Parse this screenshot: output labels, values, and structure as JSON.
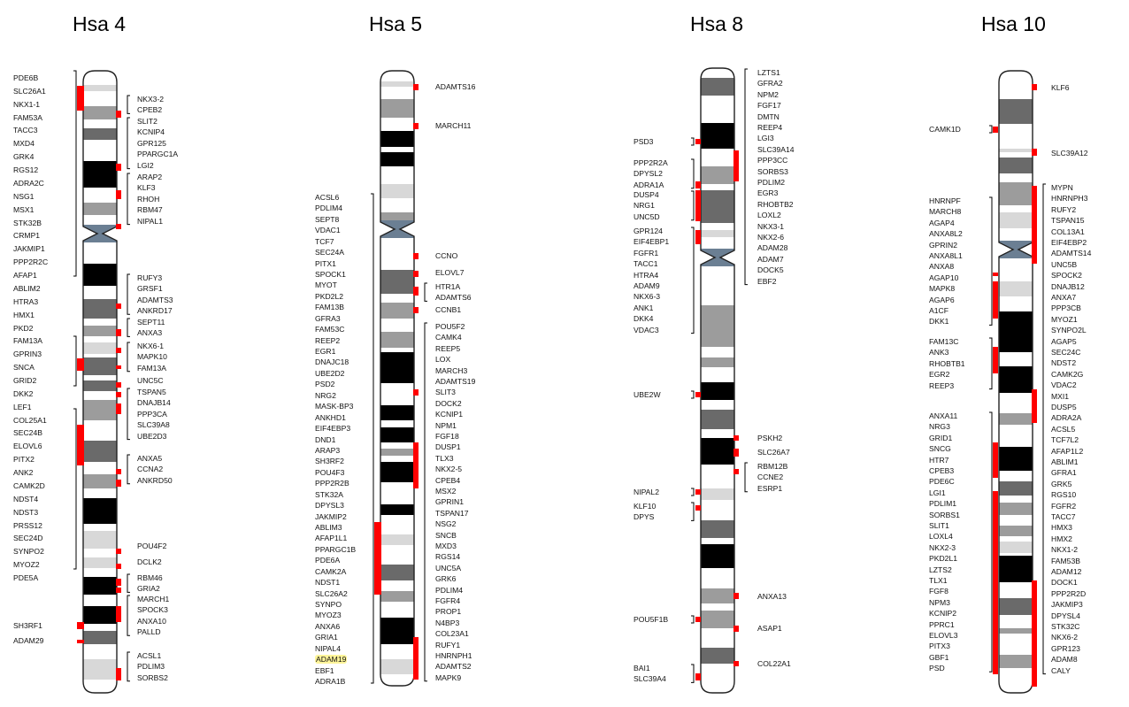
{
  "colors": {
    "black": "#000000",
    "dark": "#6a6a6a",
    "mid": "#9c9c9c",
    "light": "#d8d8d8",
    "white": "#ffffff",
    "centromere": "#6b7f93",
    "marker": "#ff0000",
    "highlight": "#fff59a"
  },
  "chromosomes": [
    {
      "id": "hsa4",
      "title": "Hsa 4",
      "left_genes": [
        "PDE6B",
        "SLC26A1",
        "NKX1-1",
        "FAM53A",
        "TACC3",
        "MXD4",
        "GRK4",
        "RGS12",
        "ADRA2C",
        "NSG1",
        "MSX1",
        "STK32B",
        "CRMP1",
        "JAKMIP1",
        "PPP2R2C",
        "AFAP1",
        "ABLIM2",
        "HTRA3",
        "HMX1",
        "PKD2",
        "FAM13A",
        "GPRIN3",
        "SNCA",
        "GRID2",
        "DKK2",
        "LEF1",
        "COL25A1",
        "SEC24B",
        "ELOVL6",
        "PITX2",
        "ANK2",
        "CAMK2D",
        "NDST4",
        "NDST3",
        "PRSS12",
        "SEC24D",
        "SYNPO2",
        "MYOZ2",
        "PDE5A",
        "SH3RF1",
        "ADAM29"
      ],
      "right_genes": [
        "NKX3-2",
        "CPEB2",
        "SLIT2",
        "KCNIP4",
        "GPR125",
        "PPARGC1A",
        "LGI2",
        "ARAP2",
        "KLF3",
        "RHOH",
        "RBM47",
        "NIPAL1",
        "RUFY3",
        "GRSF1",
        "ADAMTS3",
        "ANKRD17",
        "SEPT11",
        "ANXA3",
        "NKX6-1",
        "MAPK10",
        "FAM13A",
        "UNC5C",
        "TSPAN5",
        "DNAJB14",
        "PPP3CA",
        "SLC39A8",
        "UBE2D3",
        "ANXA5",
        "CCNA2",
        "ANKRD50",
        "POU4F2",
        "DCLK2",
        "RBM46",
        "GRIA2",
        "MARCH1",
        "SPOCK3",
        "ANXA10",
        "PALLD",
        "ACSL1",
        "PDLIM3",
        "SORBS2"
      ]
    },
    {
      "id": "hsa5",
      "title": "Hsa 5",
      "left_genes": [
        "ACSL6",
        "PDLIM4",
        "SEPT8",
        "VDAC1",
        "TCF7",
        "SEC24A",
        "PITX1",
        "SPOCK1",
        "MYOT",
        "PKD2L2",
        "FAM13B",
        "GFRA3",
        "FAM53C",
        "REEP2",
        "EGR1",
        "DNAJC18",
        "UBE2D2",
        "PSD2",
        "NRG2",
        "MASK-BP3",
        "ANKHD1",
        "EIF4EBP3",
        "DND1",
        "ARAP3",
        "SH3RF2",
        "POU4F3",
        "PPP2R2B",
        "STK32A",
        "DPYSL3",
        "JAKMIP2",
        "ABLIM3",
        "AFAP1L1",
        "PPARGC1B",
        "PDE6A",
        "CAMK2A",
        "NDST1",
        "SLC26A2",
        "SYNPO",
        "MYOZ3",
        "ANXA6",
        "GRIA1",
        "NIPAL4",
        "ADAM19",
        "EBF1",
        "ADRA1B"
      ],
      "right_genes": [
        "ADAMTS16",
        "MARCH11",
        "CCNO",
        "ELOVL7",
        "HTR1A",
        "ADAMTS6",
        "CCNB1",
        "POU5F2",
        "CAMK4",
        "REEP5",
        "LOX",
        "MARCH3",
        "ADAMTS19",
        "SLIT3",
        "DOCK2",
        "KCNIP1",
        "NPM1",
        "FGF18",
        "DUSP1",
        "TLX3",
        "NKX2-5",
        "CPEB4",
        "MSX2",
        "GPRIN1",
        "TSPAN17",
        "NSG2",
        "SNCB",
        "MXD3",
        "RGS14",
        "UNC5A",
        "GRK6",
        "PDLIM4",
        "FGFR4",
        "PROP1",
        "N4BP3",
        "COL23A1",
        "RUFY1",
        "HNRNPH1",
        "ADAMTS2",
        "MAPK9"
      ]
    },
    {
      "id": "hsa8",
      "title": "Hsa 8",
      "left_genes": [
        "PSD3",
        "PPP2R2A",
        "DPYSL2",
        "ADRA1A",
        "DUSP4",
        "NRG1",
        "UNC5D",
        "GPR124",
        "EIF4EBP1",
        "FGFR1",
        "TACC1",
        "HTRA4",
        "ADAM9",
        "NKX6-3",
        "ANK1",
        "DKK4",
        "VDAC3",
        "UBE2W",
        "NIPAL2",
        "KLF10",
        "DPYS",
        "POU5F1B",
        "BAI1",
        "SLC39A4"
      ],
      "right_genes": [
        "LZTS1",
        "GFRA2",
        "NPM2",
        "FGF17",
        "DMTN",
        "REEP4",
        "LGI3",
        "SLC39A14",
        "PPP3CC",
        "SORBS3",
        "PDLIM2",
        "EGR3",
        "RHOBTB2",
        "LOXL2",
        "NKX3-1",
        "NKX2-6",
        "ADAM28",
        "ADAM7",
        "DOCK5",
        "EBF2",
        "PSKH2",
        "SLC26A7",
        "RBM12B",
        "CCNE2",
        "ESRP1",
        "ANXA13",
        "ASAP1",
        "COL22A1"
      ]
    },
    {
      "id": "hsa10",
      "title": "Hsa 10",
      "left_genes": [
        "CAMK1D",
        "HNRNPF",
        "MARCH8",
        "AGAP4",
        "ANXA8L2",
        "GPRIN2",
        "ANXA8L1",
        "ANXA8",
        "AGAP10",
        "MAPK8",
        "AGAP6",
        "A1CF",
        "DKK1",
        "FAM13C",
        "ANK3",
        "RHOBTB1",
        "EGR2",
        "REEP3",
        "ANXA11",
        "NRG3",
        "GRID1",
        "SNCG",
        "HTR7",
        "CPEB3",
        "PDE6C",
        "LGI1",
        "PDLIM1",
        "SORBS1",
        "SLIT1",
        "LOXL4",
        "NKX2-3",
        "PKD2L1",
        "LZTS2",
        "TLX1",
        "FGF8",
        "NPM3",
        "KCNIP2",
        "PPRC1",
        "ELOVL3",
        "PITX3",
        "GBF1",
        "PSD"
      ],
      "right_genes": [
        "KLF6",
        "SLC39A12",
        "MYPN",
        "HNRNPH3",
        "RUFY2",
        "TSPAN15",
        "COL13A1",
        "EIF4EBP2",
        "ADAMTS14",
        "UNC5B",
        "SPOCK2",
        "DNAJB12",
        "ANXA7",
        "PPP3CB",
        "MYOZ1",
        "SYNPO2L",
        "AGAP5",
        "SEC24C",
        "NDST2",
        "CAMK2G",
        "VDAC2",
        "MXI1",
        "DUSP5",
        "ADRA2A",
        "ACSL5",
        "TCF7L2",
        "AFAP1L2",
        "ABLIM1",
        "GFRA1",
        "GRK5",
        "RGS10",
        "FGFR2",
        "TACC7",
        "HMX3",
        "HMX2",
        "NKX1-2",
        "FAM53B",
        "ADAM12",
        "DOCK1",
        "PPP2R2D",
        "JAKMIP3",
        "DPYSL4",
        "STK32C",
        "NKX6-2",
        "GPR123",
        "ADAM8",
        "CALY"
      ]
    }
  ]
}
